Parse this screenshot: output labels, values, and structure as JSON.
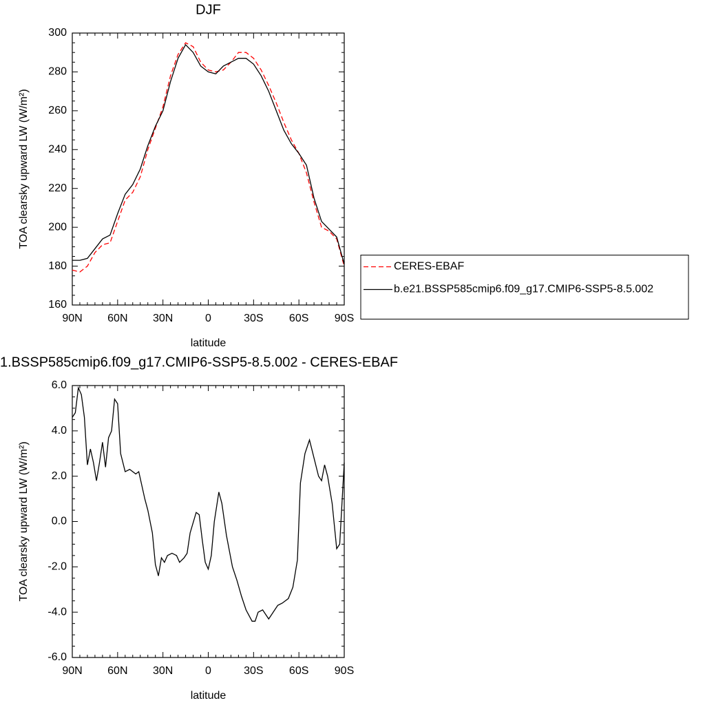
{
  "chart_data": [
    {
      "type": "line",
      "title": "DJF",
      "xlabel": "latitude",
      "ylabel": "TOA clearsky upward LW (W/m²)",
      "x": [
        90,
        85,
        80,
        75,
        70,
        65,
        60,
        55,
        50,
        45,
        40,
        35,
        30,
        25,
        20,
        15,
        10,
        5,
        0,
        -5,
        -10,
        -15,
        -20,
        -25,
        -30,
        -35,
        -40,
        -45,
        -50,
        -55,
        -60,
        -65,
        -70,
        -75,
        -80,
        -85,
        -90
      ],
      "series": [
        {
          "name": "CERES-EBAF",
          "color": "#ff0000",
          "dash": true,
          "values": [
            178,
            177,
            180,
            187,
            191,
            192,
            203,
            214,
            218,
            226,
            240,
            251,
            262,
            278,
            289,
            295,
            293,
            285,
            281,
            280,
            281,
            285,
            290,
            290,
            287,
            281,
            273,
            264,
            254,
            245,
            238,
            228,
            213,
            200,
            198,
            194,
            180
          ]
        },
        {
          "name": "b.e21.BSSP585cmip6.f09_g17.CMIP6-SSP5-8.5.002",
          "color": "#000000",
          "dash": false,
          "values": [
            183,
            183,
            184,
            189,
            194,
            196,
            207,
            217,
            222,
            230,
            242,
            252,
            260,
            275,
            287,
            294,
            290,
            283,
            280,
            279,
            283,
            285,
            287,
            287,
            284,
            278,
            270,
            260,
            250,
            243,
            238,
            232,
            215,
            203,
            199,
            195,
            181
          ]
        }
      ],
      "xlim": [
        90,
        -90
      ],
      "xticks": [
        {
          "value": 90,
          "label": "90N"
        },
        {
          "value": 60,
          "label": "60N"
        },
        {
          "value": 30,
          "label": "30N"
        },
        0,
        {
          "value": -30,
          "label": "30S"
        },
        {
          "value": -60,
          "label": "60S"
        },
        {
          "value": -90,
          "label": "90S"
        }
      ],
      "ylim": [
        160,
        300
      ],
      "yticks": [
        160,
        180,
        200,
        220,
        240,
        260,
        280,
        300
      ],
      "legend": "right"
    },
    {
      "type": "line",
      "title": "1.BSSP585cmip6.f09_g17.CMIP6-SSP5-8.5.002 - CERES-EBAF",
      "xlabel": "latitude",
      "ylabel": "TOA clearsky upward LW (W/m²)",
      "x": [
        90,
        88,
        86,
        84,
        82,
        80,
        78,
        76,
        74,
        72,
        70,
        68,
        66,
        64,
        62,
        60,
        58,
        55,
        52,
        48,
        46,
        42,
        40,
        37,
        35,
        33,
        31,
        29,
        27,
        24,
        21,
        19,
        16,
        14,
        12,
        8,
        6,
        4,
        2,
        0,
        -2,
        -4,
        -7,
        -9,
        -12,
        -16,
        -19,
        -22,
        -25,
        -29,
        -31,
        -33,
        -36,
        -40,
        -43,
        -46,
        -49,
        -53,
        -56,
        -59,
        -61,
        -64,
        -67,
        -70,
        -73,
        -75,
        -77,
        -79,
        -82,
        -85,
        -87,
        -90
      ],
      "series": [
        {
          "color": "#000000",
          "dash": false,
          "values": [
            4.6,
            4.8,
            5.9,
            5.6,
            4.6,
            2.5,
            3.2,
            2.6,
            1.8,
            2.6,
            3.5,
            2.4,
            3.7,
            4.0,
            5.4,
            5.2,
            3.0,
            2.2,
            2.3,
            2.1,
            2.2,
            1.0,
            0.5,
            -0.5,
            -1.9,
            -2.4,
            -1.6,
            -1.8,
            -1.5,
            -1.4,
            -1.5,
            -1.8,
            -1.6,
            -1.4,
            -0.5,
            0.4,
            0.3,
            -0.8,
            -1.8,
            -2.1,
            -1.5,
            0.0,
            1.3,
            0.8,
            -0.6,
            -2.0,
            -2.6,
            -3.3,
            -3.9,
            -4.4,
            -4.4,
            -4.0,
            -3.9,
            -4.3,
            -4.0,
            -3.7,
            -3.6,
            -3.4,
            -2.9,
            -1.7,
            1.7,
            3.0,
            3.6,
            2.8,
            2.0,
            1.8,
            2.5,
            2.0,
            0.8,
            -1.2,
            -1.0,
            2.6
          ]
        }
      ],
      "xlim": [
        90,
        -90
      ],
      "xticks": [
        {
          "value": 90,
          "label": "90N"
        },
        {
          "value": 60,
          "label": "60N"
        },
        {
          "value": 30,
          "label": "30N"
        },
        0,
        {
          "value": -30,
          "label": "30S"
        },
        {
          "value": -60,
          "label": "60S"
        },
        {
          "value": -90,
          "label": "90S"
        }
      ],
      "ylim": [
        -6,
        6
      ],
      "yticks": [
        {
          "value": -6,
          "label": "-6.0"
        },
        {
          "value": -4,
          "label": "-4.0"
        },
        {
          "value": -2,
          "label": "-2.0"
        },
        {
          "value": 0,
          "label": "0.0"
        },
        {
          "value": 2,
          "label": "2.0"
        },
        {
          "value": 4,
          "label": "4.0"
        },
        {
          "value": 6,
          "label": "6.0"
        }
      ]
    }
  ]
}
